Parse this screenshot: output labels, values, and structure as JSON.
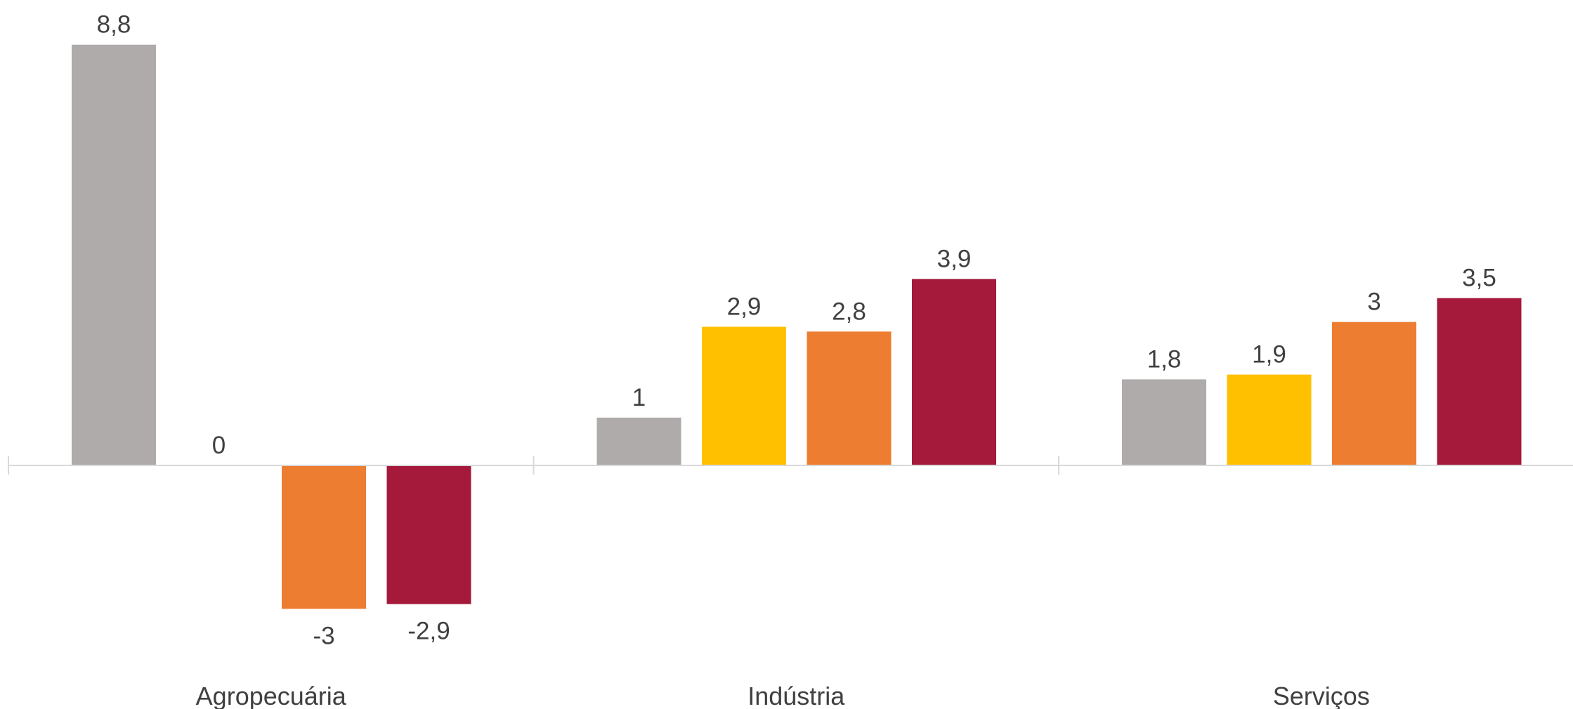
{
  "chart_data": {
    "type": "bar",
    "categories": [
      "Agropecuária",
      "Indústria",
      "Serviços"
    ],
    "series": [
      {
        "values": [
          8.8,
          1,
          1.8
        ],
        "labels": [
          "8,8",
          "1",
          "1,8"
        ],
        "color": "#AFABAB"
      },
      {
        "values": [
          0,
          2.9,
          1.9
        ],
        "labels": [
          "0",
          "2,9",
          "1,9"
        ],
        "color": "#FFC000"
      },
      {
        "values": [
          -3,
          2.8,
          3
        ],
        "labels": [
          "-3",
          "2,8",
          "3"
        ],
        "color": "#ED7D31"
      },
      {
        "values": [
          -2.9,
          3.9,
          3.5
        ],
        "labels": [
          "-2,9",
          "3,9",
          "3,5"
        ],
        "color": "#A5193B"
      }
    ],
    "title": "",
    "xlabel": "",
    "ylabel": "",
    "ylim": [
      -3,
      8.8
    ],
    "grid": false,
    "legend": "none",
    "axis_color": "#D9D9D9",
    "label_color": "#404040"
  }
}
